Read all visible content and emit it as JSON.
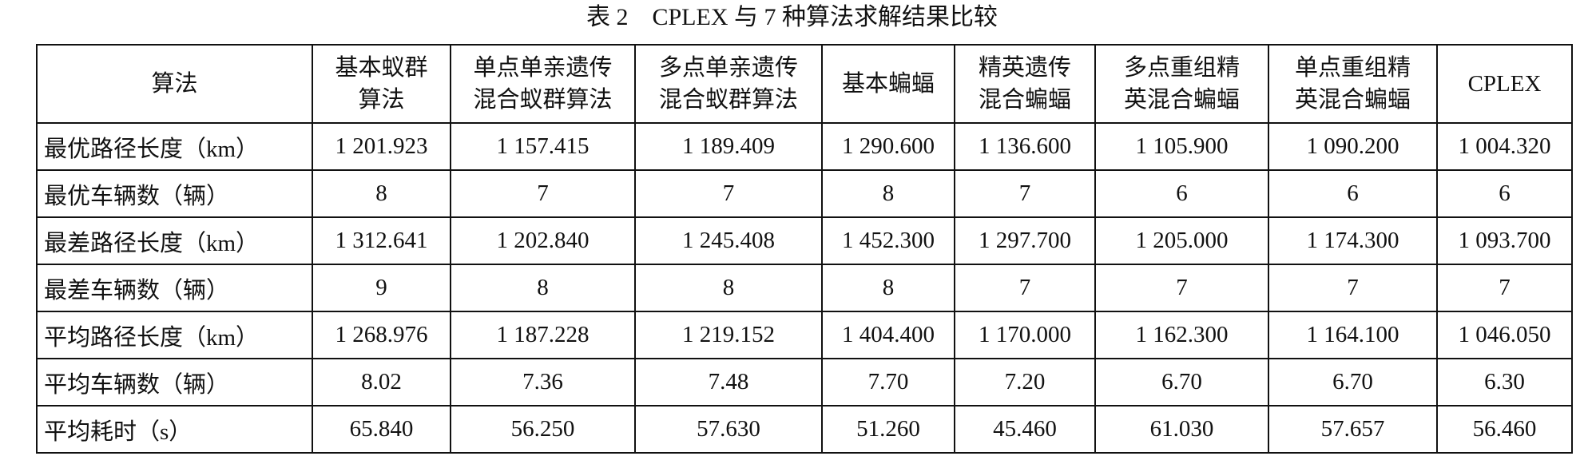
{
  "title": "表 2　CPLEX 与 7 种算法求解结果比较",
  "table": {
    "header": [
      [
        "算法"
      ],
      [
        "基本蚁群",
        "算法"
      ],
      [
        "单点单亲遗传",
        "混合蚁群算法"
      ],
      [
        "多点单亲遗传",
        "混合蚁群算法"
      ],
      [
        "基本蝙蝠"
      ],
      [
        "精英遗传",
        "混合蝙蝠"
      ],
      [
        "多点重组精",
        "英混合蝙蝠"
      ],
      [
        "单点重组精",
        "英混合蝙蝠"
      ],
      [
        "CPLEX"
      ]
    ],
    "rows": [
      [
        "最优路径长度（km）",
        "1 201.923",
        "1 157.415",
        "1 189.409",
        "1 290.600",
        "1 136.600",
        "1 105.900",
        "1 090.200",
        "1 004.320"
      ],
      [
        "最优车辆数（辆）",
        "8",
        "7",
        "7",
        "8",
        "7",
        "6",
        "6",
        "6"
      ],
      [
        "最差路径长度（km）",
        "1 312.641",
        "1 202.840",
        "1 245.408",
        "1 452.300",
        "1 297.700",
        "1 205.000",
        "1 174.300",
        "1 093.700"
      ],
      [
        "最差车辆数（辆）",
        "9",
        "8",
        "8",
        "8",
        "7",
        "7",
        "7",
        "7"
      ],
      [
        "平均路径长度（km）",
        "1 268.976",
        "1 187.228",
        "1 219.152",
        "1 404.400",
        "1 170.000",
        "1 162.300",
        "1 164.100",
        "1 046.050"
      ],
      [
        "平均车辆数（辆）",
        "8.02",
        "7.36",
        "7.48",
        "7.70",
        "7.20",
        "6.70",
        "6.70",
        "6.30"
      ],
      [
        "平均耗时（s）",
        "65.840",
        "56.250",
        "57.630",
        "51.260",
        "45.460",
        "61.030",
        "57.657",
        "56.460"
      ]
    ]
  }
}
